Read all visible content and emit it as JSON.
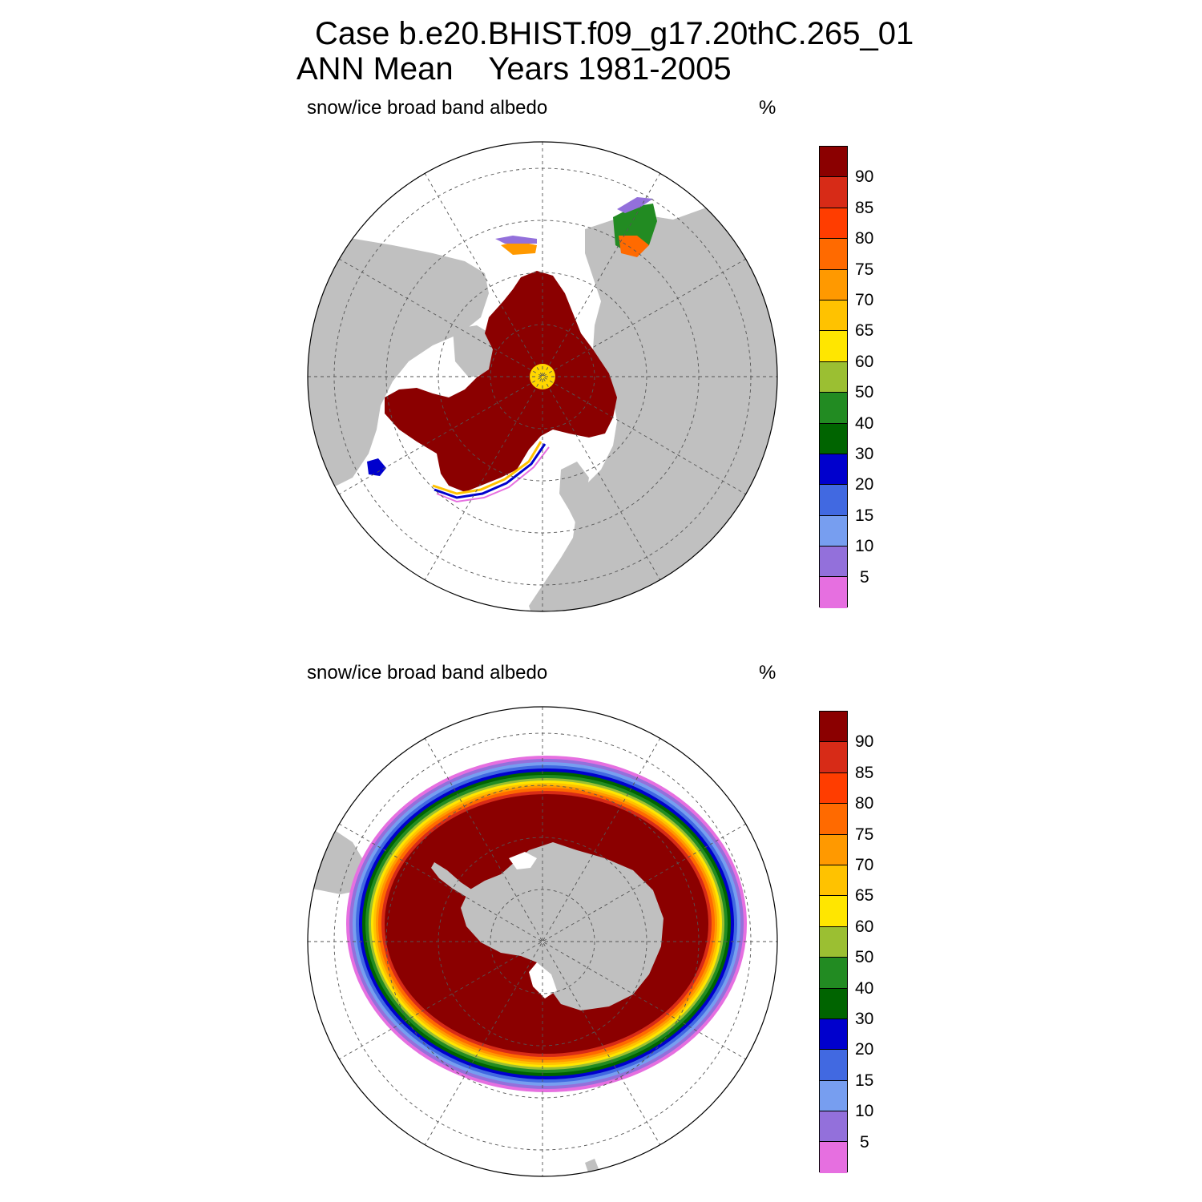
{
  "title": {
    "line1": "Case b.e20.BHIST.f09_g17.20thC.265_01",
    "line2": "ANN Mean    Years 1981-2005"
  },
  "panels": [
    {
      "id": "north",
      "label": "snow/ice broad band albedo",
      "unit": "%"
    },
    {
      "id": "south",
      "label": "snow/ice broad band albedo",
      "unit": "%"
    }
  ],
  "colorbar": {
    "labels": [
      "90",
      "85",
      "80",
      "75",
      "70",
      "65",
      "60",
      "50",
      "40",
      "30",
      "20",
      "15",
      "10",
      "5"
    ],
    "colors": [
      "#8b0000",
      "#d72b17",
      "#ff3d00",
      "#ff6a00",
      "#ff9900",
      "#ffc200",
      "#ffe600",
      "#9bbf32",
      "#228b22",
      "#006400",
      "#0000cd",
      "#4169e1",
      "#779ef0",
      "#9370db",
      "#e66fe0"
    ]
  },
  "colors": {
    "land": "#c0c0c0",
    "ocean": "#ffffff",
    "ice_max": "#8b0000",
    "pole_hole": "#ffd700"
  }
}
